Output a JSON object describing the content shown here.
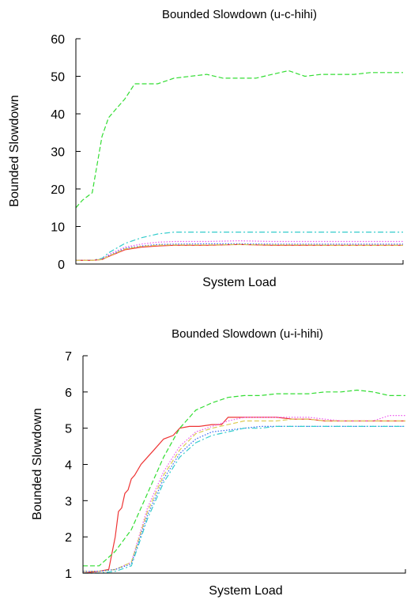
{
  "chart_data": [
    {
      "type": "line",
      "title": "Bounded Slowdown (u-c-hihi)",
      "xlabel": "System Load",
      "ylabel": "Bounded Slowdown",
      "ylim": [
        0,
        60
      ],
      "xlim": [
        0,
        1
      ],
      "yticks": [
        "0",
        "10",
        "20",
        "30",
        "40",
        "50",
        "60"
      ],
      "grid": false,
      "series": [
        {
          "color": "#33dd33",
          "style": "dashed",
          "x": [
            0,
            0.02,
            0.05,
            0.08,
            0.1,
            0.13,
            0.15,
            0.18,
            0.2,
            0.25,
            0.3,
            0.35,
            0.4,
            0.45,
            0.5,
            0.55,
            0.6,
            0.65,
            0.7,
            0.75,
            0.8,
            0.85,
            0.9,
            0.95,
            1.0
          ],
          "y": [
            15,
            17,
            19,
            34,
            39,
            42,
            44,
            48,
            48,
            48,
            49.5,
            50,
            50.5,
            49.5,
            49.5,
            49.5,
            50.5,
            51.5,
            50,
            50.5,
            50.5,
            50.5,
            51,
            51,
            51
          ]
        },
        {
          "color": "#33cccc",
          "style": "dashdot",
          "x": [
            0,
            0.05,
            0.08,
            0.1,
            0.15,
            0.2,
            0.25,
            0.3,
            0.4,
            0.5,
            0.6,
            0.7,
            0.8,
            0.9,
            1.0
          ],
          "y": [
            1,
            1,
            1.5,
            3,
            5.5,
            7,
            8,
            8.5,
            8.5,
            8.5,
            8.5,
            8.5,
            8.5,
            8.5,
            8.5
          ]
        },
        {
          "color": "#ee55ee",
          "style": "dotted",
          "x": [
            0,
            0.05,
            0.08,
            0.1,
            0.15,
            0.2,
            0.25,
            0.3,
            0.4,
            0.5,
            0.6,
            0.7,
            0.8,
            0.9,
            1.0
          ],
          "y": [
            1,
            1,
            1.3,
            2.5,
            4.5,
            5.3,
            5.8,
            6,
            6,
            6.2,
            6,
            6,
            6,
            6,
            6
          ]
        },
        {
          "color": "#3366ee",
          "style": "dotted",
          "x": [
            0,
            0.05,
            0.08,
            0.1,
            0.15,
            0.2,
            0.25,
            0.3,
            0.4,
            0.5,
            0.6,
            0.7,
            0.8,
            0.9,
            1.0
          ],
          "y": [
            1,
            1,
            1.2,
            2.2,
            4.2,
            4.8,
            5.2,
            5.3,
            5.4,
            5.4,
            5.3,
            5.3,
            5.3,
            5.3,
            5.3
          ]
        },
        {
          "color": "#ee3333",
          "style": "solid",
          "x": [
            0,
            0.05,
            0.08,
            0.1,
            0.15,
            0.2,
            0.25,
            0.3,
            0.4,
            0.5,
            0.6,
            0.7,
            0.8,
            0.9,
            1.0
          ],
          "y": [
            1,
            1,
            1.2,
            2,
            3.8,
            4.5,
            4.8,
            5,
            5,
            5.2,
            5,
            5,
            5,
            5,
            5
          ]
        },
        {
          "color": "#ddcc55",
          "style": "dashed",
          "x": [
            0,
            0.05,
            0.08,
            0.1,
            0.15,
            0.2,
            0.25,
            0.3,
            0.4,
            0.5,
            0.6,
            0.7,
            0.8,
            0.9,
            1.0
          ],
          "y": [
            1,
            1,
            1.2,
            2.1,
            4,
            4.7,
            5,
            5.1,
            5.1,
            5.2,
            5.1,
            5.1,
            5,
            5,
            5
          ]
        }
      ]
    },
    {
      "type": "line",
      "title": "Bounded Slowdown (u-i-hihi)",
      "xlabel": "System Load",
      "ylabel": "Bounded Slowdown",
      "ylim": [
        1,
        7
      ],
      "xlim": [
        0,
        1
      ],
      "yticks": [
        "1",
        "2",
        "3",
        "4",
        "5",
        "6",
        "7"
      ],
      "grid": false,
      "series": [
        {
          "color": "#ee3333",
          "style": "solid",
          "x": [
            0,
            0.05,
            0.08,
            0.1,
            0.11,
            0.12,
            0.13,
            0.14,
            0.15,
            0.16,
            0.18,
            0.2,
            0.22,
            0.25,
            0.28,
            0.3,
            0.33,
            0.36,
            0.4,
            0.43,
            0.45,
            0.48,
            0.5,
            0.55,
            0.6,
            0.65,
            0.7,
            0.75,
            0.8,
            0.85,
            0.9,
            0.95,
            1.0
          ],
          "y": [
            1,
            1.05,
            1.1,
            2,
            2.7,
            2.8,
            3.2,
            3.3,
            3.6,
            3.7,
            4.0,
            4.2,
            4.4,
            4.7,
            4.8,
            5.0,
            5.05,
            5.05,
            5.1,
            5.1,
            5.3,
            5.3,
            5.3,
            5.3,
            5.3,
            5.25,
            5.25,
            5.2,
            5.2,
            5.2,
            5.2,
            5.2,
            5.2
          ]
        },
        {
          "color": "#33dd33",
          "style": "dashed",
          "x": [
            0,
            0.05,
            0.1,
            0.15,
            0.2,
            0.25,
            0.3,
            0.35,
            0.4,
            0.45,
            0.5,
            0.55,
            0.6,
            0.65,
            0.7,
            0.75,
            0.8,
            0.85,
            0.9,
            0.95,
            1.0
          ],
          "y": [
            1.2,
            1.2,
            1.6,
            2.2,
            3.2,
            4.2,
            5.0,
            5.5,
            5.7,
            5.85,
            5.9,
            5.9,
            5.95,
            5.95,
            5.95,
            6.0,
            6.0,
            6.05,
            6.0,
            5.9,
            5.9
          ]
        },
        {
          "color": "#ee55ee",
          "style": "dotted",
          "x": [
            0,
            0.05,
            0.1,
            0.15,
            0.2,
            0.25,
            0.3,
            0.35,
            0.4,
            0.45,
            0.5,
            0.55,
            0.6,
            0.65,
            0.7,
            0.75,
            0.8,
            0.85,
            0.9,
            0.95,
            1.0
          ],
          "y": [
            1.05,
            1.05,
            1.1,
            1.3,
            2.8,
            3.8,
            4.5,
            4.9,
            5.05,
            5.2,
            5.3,
            5.3,
            5.3,
            5.3,
            5.3,
            5.25,
            5.2,
            5.2,
            5.2,
            5.35,
            5.35
          ]
        },
        {
          "color": "#ddcc55",
          "style": "dashed",
          "x": [
            0,
            0.05,
            0.1,
            0.15,
            0.2,
            0.25,
            0.3,
            0.35,
            0.4,
            0.45,
            0.5,
            0.55,
            0.6,
            0.65,
            0.7,
            0.75,
            0.8,
            0.85,
            0.9,
            0.95,
            1.0
          ],
          "y": [
            1.05,
            1.05,
            1.1,
            1.3,
            2.7,
            3.7,
            4.4,
            4.85,
            5.0,
            5.1,
            5.2,
            5.2,
            5.2,
            5.25,
            5.25,
            5.2,
            5.2,
            5.2,
            5.2,
            5.2,
            5.2
          ]
        },
        {
          "color": "#3366ee",
          "style": "dotted",
          "x": [
            0,
            0.05,
            0.1,
            0.15,
            0.2,
            0.25,
            0.3,
            0.35,
            0.4,
            0.45,
            0.5,
            0.55,
            0.6,
            0.65,
            0.7,
            0.75,
            0.8,
            0.85,
            0.9,
            0.95,
            1.0
          ],
          "y": [
            1.05,
            1.05,
            1.1,
            1.25,
            2.6,
            3.6,
            4.3,
            4.7,
            4.9,
            4.95,
            5.0,
            5.05,
            5.05,
            5.05,
            5.05,
            5.05,
            5.05,
            5.05,
            5.05,
            5.05,
            5.05
          ]
        },
        {
          "color": "#33cccc",
          "style": "dashdot",
          "x": [
            0,
            0.05,
            0.1,
            0.15,
            0.2,
            0.25,
            0.3,
            0.35,
            0.4,
            0.45,
            0.5,
            0.55,
            0.6,
            0.65,
            0.7,
            0.75,
            0.8,
            0.85,
            0.9,
            0.95,
            1.0
          ],
          "y": [
            1.0,
            1.0,
            1.05,
            1.2,
            2.5,
            3.5,
            4.2,
            4.6,
            4.8,
            4.9,
            5.0,
            5.0,
            5.05,
            5.05,
            5.05,
            5.05,
            5.05,
            5.05,
            5.05,
            5.05,
            5.05
          ]
        }
      ]
    }
  ]
}
